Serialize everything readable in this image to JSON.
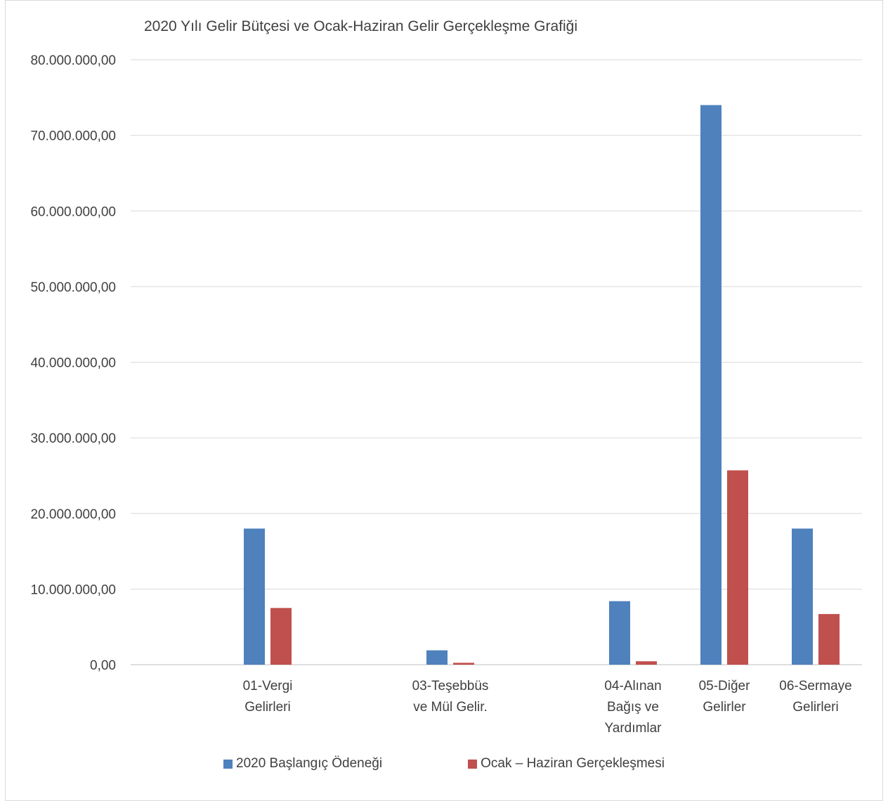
{
  "chart_data": {
    "type": "bar",
    "title": "2020 Yılı Gelir Bütçesi ve Ocak-Haziran Gelir Gerçekleşme Grafiği",
    "xlabel": "",
    "ylabel": "",
    "ylim": [
      0,
      80000000
    ],
    "yticks": [
      "0,00",
      "10.000.000,00",
      "20.000.000,00",
      "30.000.000,00",
      "40.000.000,00",
      "50.000.000,00",
      "60.000.000,00",
      "70.000.000,00",
      "80.000.000,00"
    ],
    "grid": true,
    "legend_position": "bottom",
    "categories": [
      [
        "01-Vergi",
        "Gelirleri"
      ],
      [
        "03-Teşebbüs",
        "ve Mül Gelir."
      ],
      [
        "04-Alınan",
        "Bağış ve",
        "Yardımlar"
      ],
      [
        "05-Diğer",
        "Gelirler"
      ],
      [
        "06-Sermaye",
        "Gelirleri"
      ]
    ],
    "series": [
      {
        "name": "2020 Başlangıç Ödeneği",
        "color": "#4f81bd",
        "values": [
          18000000,
          1900000,
          8400000,
          74000000,
          18000000
        ]
      },
      {
        "name": "Ocak – Haziran Gerçekleşmesi",
        "color": "#c0504d",
        "values": [
          7500000,
          250000,
          450000,
          25700000,
          6700000
        ]
      }
    ]
  }
}
